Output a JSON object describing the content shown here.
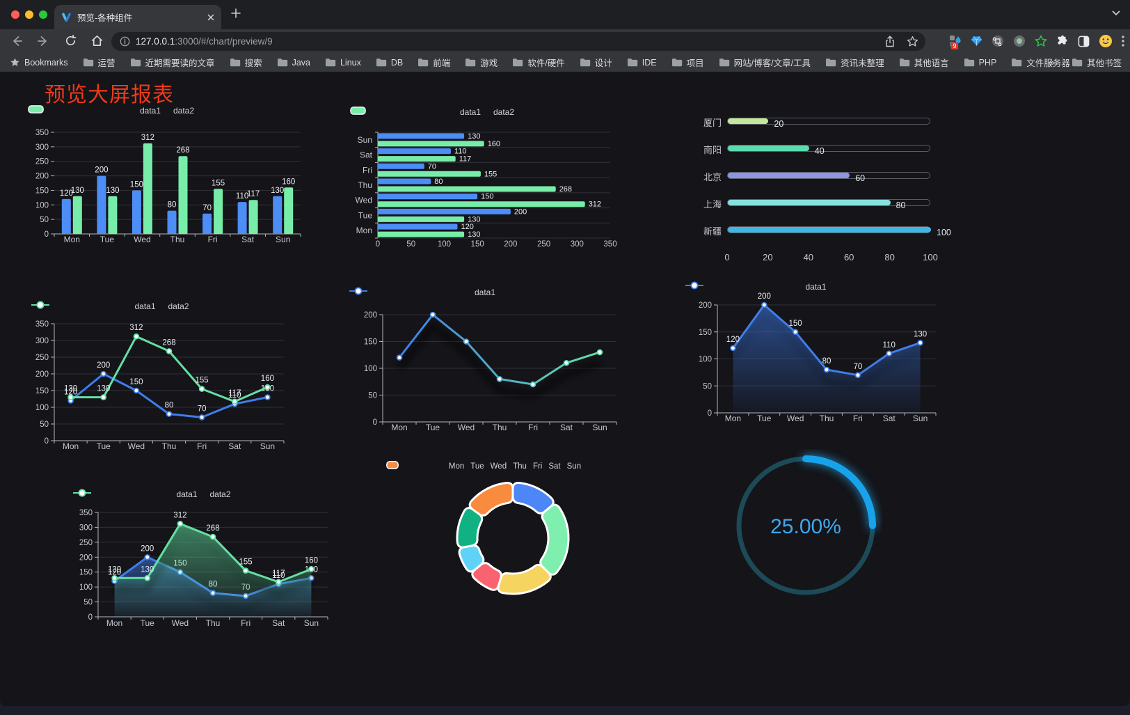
{
  "browser": {
    "tab_title": "预览-各种组件",
    "url": {
      "host": "127.0.0.1",
      "rest": ":3000/#/chart/preview/9"
    },
    "bookmarks_root": "Bookmarks",
    "bookmarks": [
      "运营",
      "近期需要读的文章",
      "搜索",
      "Java",
      "Linux",
      "DB",
      "前端",
      "游戏",
      "软件/硬件",
      "设计",
      "IDE",
      "项目",
      "网站/博客/文章/工具",
      "资讯未整理",
      "其他语言",
      "PHP",
      "文件服务器"
    ],
    "bookmarks_overflow": "»",
    "other_bookmarks": "其他书签",
    "extension_badge": "9"
  },
  "page": {
    "title": "预览大屏报表",
    "title_color": "#ee3a1b"
  },
  "chart_data": [
    {
      "type": "bar",
      "title": "",
      "legend_icon": "rect",
      "value_labels": true,
      "categories": [
        "Mon",
        "Tue",
        "Wed",
        "Thu",
        "Fri",
        "Sat",
        "Sun"
      ],
      "series": [
        {
          "name": "data1",
          "color": "#4c8df6",
          "values": [
            120,
            200,
            150,
            80,
            70,
            110,
            130
          ]
        },
        {
          "name": "data2",
          "color": "#78eda9",
          "values": [
            130,
            130,
            312,
            268,
            155,
            117,
            160
          ]
        }
      ],
      "ylim": [
        0,
        350
      ],
      "ystep": 50
    },
    {
      "type": "hbar",
      "title": "",
      "legend_icon": "rect",
      "value_labels": true,
      "categories": [
        "Mon",
        "Tue",
        "Wed",
        "Thu",
        "Fri",
        "Sat",
        "Sun"
      ],
      "series": [
        {
          "name": "data1",
          "color": "#4c8df6",
          "values": [
            120,
            200,
            150,
            80,
            70,
            110,
            130
          ]
        },
        {
          "name": "data2",
          "color": "#78eda9",
          "values": [
            130,
            130,
            312,
            268,
            155,
            117,
            160
          ]
        }
      ],
      "xlim": [
        0,
        350
      ],
      "xstep": 50
    },
    {
      "type": "progress",
      "title": "",
      "max": 100,
      "ticks": [
        0,
        20,
        40,
        60,
        80,
        100
      ],
      "items": [
        {
          "label": "厦门",
          "value": 20,
          "color": "#c3e79d"
        },
        {
          "label": "南阳",
          "value": 40,
          "color": "#5cdcae"
        },
        {
          "label": "北京",
          "value": 60,
          "color": "#9095e1"
        },
        {
          "label": "上海",
          "value": 80,
          "color": "#85e2e1"
        },
        {
          "label": "新疆",
          "value": 100,
          "color": "#41b5e3"
        }
      ]
    },
    {
      "type": "line",
      "title": "",
      "legend_icon": "line",
      "value_labels": true,
      "categories": [
        "Mon",
        "Tue",
        "Wed",
        "Thu",
        "Fri",
        "Sat",
        "Sun"
      ],
      "series": [
        {
          "name": "data1",
          "color": "#3f7deb",
          "values": [
            120,
            200,
            150,
            80,
            70,
            110,
            130
          ]
        },
        {
          "name": "data2",
          "color": "#63e0a2",
          "values": [
            130,
            130,
            312,
            268,
            155,
            117,
            160
          ]
        }
      ],
      "ylim": [
        0,
        350
      ],
      "ystep": 50
    },
    {
      "type": "line",
      "title": "",
      "legend_icon": "line",
      "value_labels": false,
      "shadow": true,
      "categories": [
        "Mon",
        "Tue",
        "Wed",
        "Thu",
        "Fri",
        "Sat",
        "Sun"
      ],
      "series": [
        {
          "name": "data1",
          "color": "#3f7deb",
          "color2": "#63e0a2",
          "gradient": true,
          "values": [
            120,
            200,
            150,
            80,
            70,
            110,
            130
          ]
        }
      ],
      "ylim": [
        0,
        200
      ],
      "ystep": 50
    },
    {
      "type": "line",
      "title": "",
      "legend_icon": "line",
      "value_labels": true,
      "shadow": true,
      "categories": [
        "Mon",
        "Tue",
        "Wed",
        "Thu",
        "Fri",
        "Sat",
        "Sun"
      ],
      "series": [
        {
          "name": "data1",
          "color": "#3f7deb",
          "area": true,
          "values": [
            120,
            200,
            150,
            80,
            70,
            110,
            130
          ]
        }
      ],
      "ylim": [
        0,
        200
      ],
      "ystep": 50
    },
    {
      "type": "line",
      "title": "",
      "legend_icon": "line",
      "value_labels": true,
      "shadow": true,
      "categories": [
        "Mon",
        "Tue",
        "Wed",
        "Thu",
        "Fri",
        "Sat",
        "Sun"
      ],
      "series": [
        {
          "name": "data1",
          "color": "#3f7deb",
          "area": true,
          "values": [
            120,
            200,
            150,
            80,
            70,
            110,
            130
          ]
        },
        {
          "name": "data2",
          "color": "#63e0a2",
          "area": true,
          "values": [
            130,
            130,
            312,
            268,
            155,
            117,
            160
          ]
        }
      ],
      "ylim": [
        0,
        350
      ],
      "ystep": 50
    },
    {
      "type": "pie",
      "title": "",
      "legend_icon": "rect",
      "categories": [
        "Mon",
        "Tue",
        "Wed",
        "Thu",
        "Fri",
        "Sat",
        "Sun"
      ],
      "values": [
        120,
        200,
        150,
        80,
        70,
        110,
        130
      ],
      "colors": [
        "#4c86f7",
        "#7eefae",
        "#f5d45f",
        "#f9626f",
        "#5fd3f7",
        "#10b283",
        "#f88b3d"
      ]
    },
    {
      "type": "gauge",
      "title": "",
      "value": 25,
      "label": "25.00%",
      "color": "#17a3eb",
      "track": "#1d4a57",
      "text_color": "#3fa7ee"
    }
  ]
}
